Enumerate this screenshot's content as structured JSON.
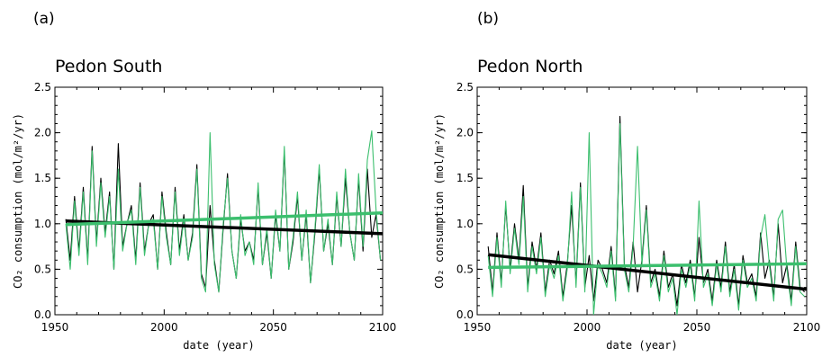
{
  "chart_data": [
    {
      "type": "line",
      "panel_label": "(a)",
      "title": "Pedon South",
      "xlabel": "date (year)",
      "ylabel": "CO₂ consumption (mol/m²/yr)",
      "xlim": [
        1950,
        2100
      ],
      "ylim": [
        0,
        2.5
      ],
      "xticks": [
        "1950",
        "2000",
        "2050",
        "2100"
      ],
      "yticks": [
        "0.0",
        "0.5",
        "1.0",
        "1.5",
        "2.0",
        "2.5"
      ],
      "colors": {
        "series1": "#000000",
        "series2": "#3cbf6e"
      },
      "series": [
        {
          "x": [
            1955,
            1957,
            1959,
            1961,
            1963,
            1965,
            1967,
            1969,
            1971,
            1973,
            1975,
            1977,
            1979,
            1981,
            1983,
            1985,
            1987,
            1989,
            1991,
            1993,
            1995,
            1997,
            1999,
            2001,
            2003,
            2005,
            2007,
            2009,
            2011,
            2013,
            2015,
            2017,
            2019,
            2021,
            2023,
            2025,
            2027,
            2029,
            2031,
            2033,
            2035,
            2037,
            2039,
            2041,
            2043,
            2045,
            2047,
            2049,
            2051,
            2053,
            2055,
            2057,
            2059,
            2061,
            2063,
            2065,
            2067,
            2069,
            2071,
            2073,
            2075,
            2077,
            2079,
            2081,
            2083,
            2085,
            2087,
            2089,
            2091,
            2093,
            2095,
            2097,
            2099
          ],
          "values": [
            1.05,
            0.6,
            1.3,
            0.7,
            1.4,
            0.6,
            1.85,
            0.8,
            1.5,
            0.9,
            1.35,
            0.5,
            1.88,
            0.75,
            1.0,
            1.2,
            0.6,
            1.45,
            0.7,
            1.0,
            1.1,
            0.5,
            1.35,
            0.9,
            0.55,
            1.4,
            0.7,
            1.1,
            0.6,
            0.9,
            1.65,
            0.45,
            0.3,
            1.2,
            0.6,
            0.25,
            0.95,
            1.55,
            0.7,
            0.4,
            1.05,
            0.7,
            0.8,
            0.6,
            1.4,
            0.55,
            0.9,
            0.4,
            1.1,
            0.7,
            1.8,
            0.5,
            0.8,
            1.3,
            0.6,
            1.1,
            0.35,
            0.9,
            1.6,
            0.7,
            1.0,
            0.55,
            1.3,
            0.75,
            1.5,
            0.9,
            0.6,
            1.5,
            0.7,
            1.6,
            0.85,
            1.1,
            0.6
          ]
        },
        {
          "x": [
            1955,
            1957,
            1959,
            1961,
            1963,
            1965,
            1967,
            1969,
            1971,
            1973,
            1975,
            1977,
            1979,
            1981,
            1983,
            1985,
            1987,
            1989,
            1991,
            1993,
            1995,
            1997,
            1999,
            2001,
            2003,
            2005,
            2007,
            2009,
            2011,
            2013,
            2015,
            2017,
            2019,
            2021,
            2023,
            2025,
            2027,
            2029,
            2031,
            2033,
            2035,
            2037,
            2039,
            2041,
            2043,
            2045,
            2047,
            2049,
            2051,
            2053,
            2055,
            2057,
            2059,
            2061,
            2063,
            2065,
            2067,
            2069,
            2071,
            2073,
            2075,
            2077,
            2079,
            2081,
            2083,
            2085,
            2087,
            2089,
            2091,
            2093,
            2095,
            2097,
            2099
          ],
          "values": [
            1.0,
            0.5,
            1.25,
            0.65,
            1.35,
            0.55,
            1.8,
            0.75,
            1.45,
            0.85,
            1.3,
            0.5,
            1.6,
            0.7,
            1.0,
            1.15,
            0.55,
            1.4,
            0.65,
            1.0,
            1.05,
            0.5,
            1.3,
            0.85,
            0.55,
            1.35,
            0.65,
            1.05,
            0.6,
            0.85,
            1.6,
            0.4,
            0.25,
            2.0,
            0.55,
            0.25,
            1.0,
            1.5,
            0.7,
            0.4,
            1.1,
            0.65,
            0.8,
            0.55,
            1.45,
            0.55,
            0.95,
            0.4,
            1.15,
            0.7,
            1.85,
            0.5,
            0.85,
            1.35,
            0.6,
            1.15,
            0.35,
            0.95,
            1.65,
            0.7,
            1.05,
            0.55,
            1.35,
            0.75,
            1.6,
            0.9,
            0.6,
            1.55,
            0.75,
            1.7,
            2.02,
            1.15,
            0.6
          ]
        },
        {
          "type": "trend",
          "x": [
            1955,
            2100
          ],
          "values": [
            1.03,
            0.89
          ]
        },
        {
          "type": "trend",
          "x": [
            1955,
            2100
          ],
          "values": [
            0.99,
            1.12
          ]
        }
      ]
    },
    {
      "type": "line",
      "panel_label": "(b)",
      "title": "Pedon North",
      "xlabel": "date (year)",
      "ylabel": "CO₂ consumption (mol/m²/yr)",
      "xlim": [
        1950,
        2100
      ],
      "ylim": [
        0,
        2.5
      ],
      "xticks": [
        "1950",
        "2000",
        "2050",
        "2100"
      ],
      "yticks": [
        "0.0",
        "0.5",
        "1.0",
        "1.5",
        "2.0",
        "2.5"
      ],
      "colors": {
        "series1": "#000000",
        "series2": "#3cbf6e"
      },
      "series": [
        {
          "x": [
            1955,
            1957,
            1959,
            1961,
            1963,
            1965,
            1967,
            1969,
            1971,
            1973,
            1975,
            1977,
            1979,
            1981,
            1983,
            1985,
            1987,
            1989,
            1991,
            1993,
            1995,
            1997,
            1999,
            2001,
            2003,
            2005,
            2007,
            2009,
            2011,
            2013,
            2015,
            2017,
            2019,
            2021,
            2023,
            2025,
            2027,
            2029,
            2031,
            2033,
            2035,
            2037,
            2039,
            2041,
            2043,
            2045,
            2047,
            2049,
            2051,
            2053,
            2055,
            2057,
            2059,
            2061,
            2063,
            2065,
            2067,
            2069,
            2071,
            2073,
            2075,
            2077,
            2079,
            2081,
            2083,
            2085,
            2087,
            2089,
            2091,
            2093,
            2095,
            2097,
            2099
          ],
          "values": [
            0.75,
            0.25,
            0.9,
            0.35,
            1.2,
            0.5,
            1.0,
            0.6,
            1.42,
            0.3,
            0.8,
            0.5,
            0.9,
            0.25,
            0.6,
            0.45,
            0.7,
            0.2,
            0.55,
            1.2,
            0.35,
            1.45,
            0.3,
            0.65,
            0.15,
            0.6,
            0.5,
            0.35,
            0.75,
            0.2,
            2.18,
            0.55,
            0.3,
            0.8,
            0.25,
            0.6,
            1.2,
            0.35,
            0.5,
            0.2,
            0.7,
            0.3,
            0.45,
            0.1,
            0.55,
            0.35,
            0.6,
            0.2,
            0.85,
            0.35,
            0.5,
            0.15,
            0.6,
            0.3,
            0.8,
            0.25,
            0.55,
            0.1,
            0.65,
            0.35,
            0.45,
            0.2,
            0.9,
            0.4,
            0.6,
            0.2,
            1.0,
            0.35,
            0.55,
            0.15,
            0.8,
            0.3,
            0.25
          ]
        },
        {
          "x": [
            1955,
            1957,
            1959,
            1961,
            1963,
            1965,
            1967,
            1969,
            1971,
            1973,
            1975,
            1977,
            1979,
            1981,
            1983,
            1985,
            1987,
            1989,
            1991,
            1993,
            1995,
            1997,
            1999,
            2001,
            2003,
            2005,
            2007,
            2009,
            2011,
            2013,
            2015,
            2017,
            2019,
            2021,
            2023,
            2025,
            2027,
            2029,
            2031,
            2033,
            2035,
            2037,
            2039,
            2041,
            2043,
            2045,
            2047,
            2049,
            2051,
            2053,
            2055,
            2057,
            2059,
            2061,
            2063,
            2065,
            2067,
            2069,
            2071,
            2073,
            2075,
            2077,
            2079,
            2081,
            2083,
            2085,
            2087,
            2089,
            2091,
            2093,
            2095,
            2097,
            2099
          ],
          "values": [
            0.65,
            0.2,
            0.85,
            0.3,
            1.25,
            0.45,
            0.95,
            0.55,
            1.3,
            0.25,
            0.75,
            0.45,
            0.85,
            0.2,
            0.55,
            0.4,
            0.65,
            0.15,
            0.5,
            1.35,
            0.3,
            1.4,
            0.25,
            2.0,
            0.0,
            0.55,
            0.45,
            0.3,
            0.7,
            0.15,
            2.1,
            0.5,
            0.25,
            0.75,
            1.85,
            0.55,
            1.15,
            0.3,
            0.45,
            0.15,
            0.65,
            0.25,
            0.4,
            0.0,
            0.5,
            0.3,
            0.55,
            0.15,
            1.25,
            0.3,
            0.45,
            0.1,
            0.55,
            0.25,
            0.75,
            0.2,
            0.5,
            0.05,
            0.6,
            0.3,
            0.4,
            0.15,
            0.85,
            1.1,
            0.55,
            0.15,
            1.05,
            1.15,
            0.5,
            0.1,
            0.75,
            0.25,
            0.2
          ]
        },
        {
          "type": "trend",
          "x": [
            1955,
            2100
          ],
          "values": [
            0.66,
            0.28
          ]
        },
        {
          "type": "trend",
          "x": [
            1955,
            2100
          ],
          "values": [
            0.52,
            0.56
          ]
        }
      ]
    }
  ]
}
